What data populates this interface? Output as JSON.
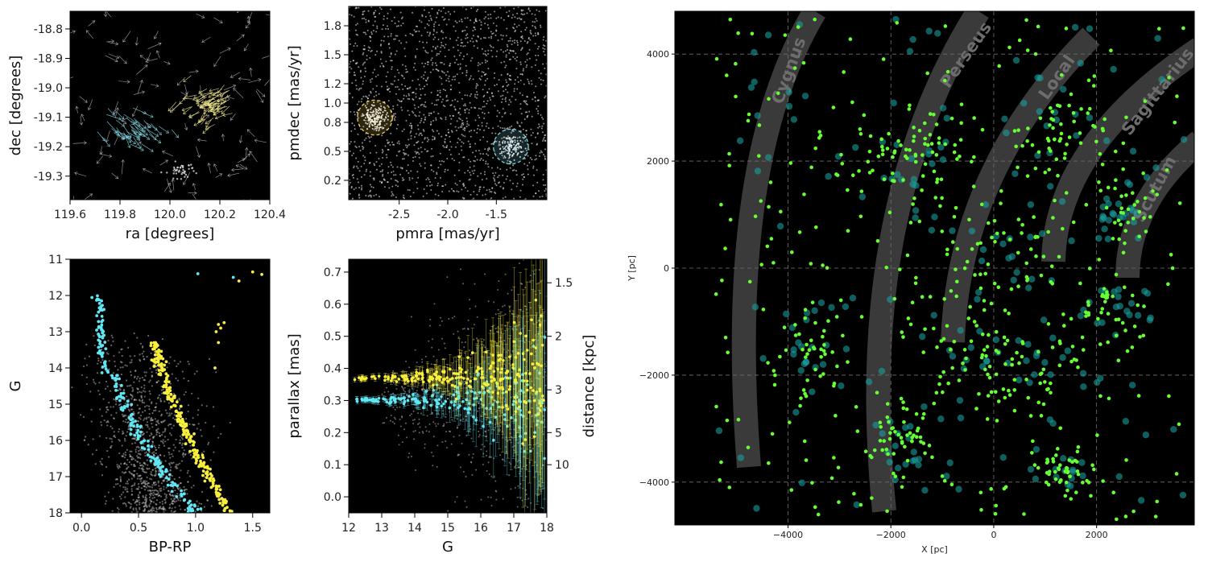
{
  "chart_data": [
    {
      "id": "radec",
      "type": "scatter",
      "xlabel": "ra [degrees]",
      "ylabel": "dec [degrees]",
      "xlim": [
        119.6,
        120.4
      ],
      "ylim": [
        -19.38,
        -18.74
      ],
      "y_inverted": true,
      "xticks": [
        "119.6",
        "119.8",
        "120.0",
        "120.2",
        "120.4"
      ],
      "yticks": [
        "-18.8",
        "-18.9",
        "-19.0",
        "-19.1",
        "-19.2",
        "-19.3"
      ],
      "series": [
        {
          "color": "#ffffff",
          "marker": "proper-motion arrows",
          "center": [
            119.95,
            -19.05
          ],
          "spread": [
            0.4,
            0.32
          ],
          "count": 140
        },
        {
          "color": "#f0e68c",
          "marker": "proper-motion arrows",
          "center": [
            120.18,
            -19.05
          ],
          "spread": [
            0.1,
            0.07
          ],
          "count": 70
        },
        {
          "color": "#7fd3e0",
          "marker": "proper-motion arrows",
          "center": [
            119.82,
            -19.14
          ],
          "spread": [
            0.12,
            0.06
          ],
          "count": 45
        },
        {
          "color": "#dddddd",
          "marker": "dots",
          "center": [
            120.05,
            -19.28
          ],
          "spread": [
            0.05,
            0.03
          ],
          "count": 40
        }
      ]
    },
    {
      "id": "pm",
      "type": "scatter",
      "xlabel": "pmra [mas/yr]",
      "ylabel": "pmdec [mas/yr]",
      "xlim": [
        -3.02,
        -0.98
      ],
      "ylim": [
        0.0,
        2.0
      ],
      "xticks": [
        "-2.5",
        "-2.0",
        "-1.5"
      ],
      "yticks": [
        "0.2",
        "0.5",
        "0.8",
        "1.0",
        "1.2",
        "1.5",
        "1.8"
      ],
      "selections": [
        {
          "color": "#f3d35c",
          "center": [
            -2.75,
            0.85
          ],
          "radius": 0.2
        },
        {
          "color": "#7fd3e0",
          "center": [
            -1.35,
            0.55
          ],
          "radius": 0.2
        }
      ],
      "series": [
        {
          "color": "#ffffff",
          "center": [
            -2.0,
            1.0
          ],
          "spread": [
            2.1,
            2.0
          ],
          "count": 1700
        },
        {
          "color": "#ffffff",
          "center": [
            -2.75,
            0.85
          ],
          "spread": [
            0.14,
            0.14
          ],
          "count": 160
        },
        {
          "color": "#ffffff",
          "center": [
            -1.35,
            0.55
          ],
          "spread": [
            0.14,
            0.14
          ],
          "count": 110
        }
      ]
    },
    {
      "id": "cmd",
      "type": "scatter",
      "xlabel": "BP-RP",
      "ylabel": "G",
      "xlim": [
        -0.1,
        1.65
      ],
      "ylim": [
        18.0,
        11.0
      ],
      "y_inverted": true,
      "xticks": [
        "0.0",
        "0.5",
        "1.0",
        "1.5"
      ],
      "yticks": [
        "11",
        "12",
        "13",
        "14",
        "15",
        "16",
        "17",
        "18"
      ],
      "series": [
        {
          "color": "#c8c8c8",
          "count": 1200
        },
        {
          "color": "#f8ef3c",
          "sequence": "yellow cluster"
        },
        {
          "color": "#61e7f3",
          "sequence": "cyan cluster"
        }
      ]
    },
    {
      "id": "parallax",
      "type": "scatter",
      "xlabel": "G",
      "ylabel": "parallax [mas]",
      "ylabel_right": "distance [kpc]",
      "xlim": [
        12.0,
        18.0
      ],
      "ylim": [
        -0.05,
        0.74
      ],
      "xticks": [
        "12",
        "13",
        "14",
        "15",
        "16",
        "17",
        "18"
      ],
      "yticks": [
        "0.0",
        "0.1",
        "0.2",
        "0.3",
        "0.4",
        "0.5",
        "0.6",
        "0.7"
      ],
      "yticks_right": [
        "1.5",
        "2",
        "3",
        "5",
        "10"
      ],
      "series": [
        {
          "color": "#c8c8c8",
          "count": 700
        },
        {
          "color": "#f8ef3c",
          "parallax": 0.37,
          "error_bars": true
        },
        {
          "color": "#61e7f3",
          "parallax": 0.3,
          "error_bars": true
        }
      ]
    },
    {
      "id": "galaxy",
      "type": "scatter",
      "xlabel": "X [pc]",
      "ylabel": "Y [pc]",
      "xlim": [
        -6200,
        3900
      ],
      "ylim": [
        -4800,
        4800
      ],
      "grid": true,
      "xticks": [
        "−4000",
        "−2000",
        "0",
        "2000"
      ],
      "yticks": [
        "4000",
        "2000",
        "0",
        "−2000",
        "−4000"
      ],
      "arms": [
        "Cygnus",
        "Perseus",
        "Local",
        "Sagittarius",
        "Scutum"
      ],
      "series": [
        {
          "color": "#66ff33",
          "marker": "small dots",
          "count": 700
        },
        {
          "color": "#1a9f9f",
          "marker": "large translucent dots",
          "count": 260
        }
      ]
    }
  ]
}
